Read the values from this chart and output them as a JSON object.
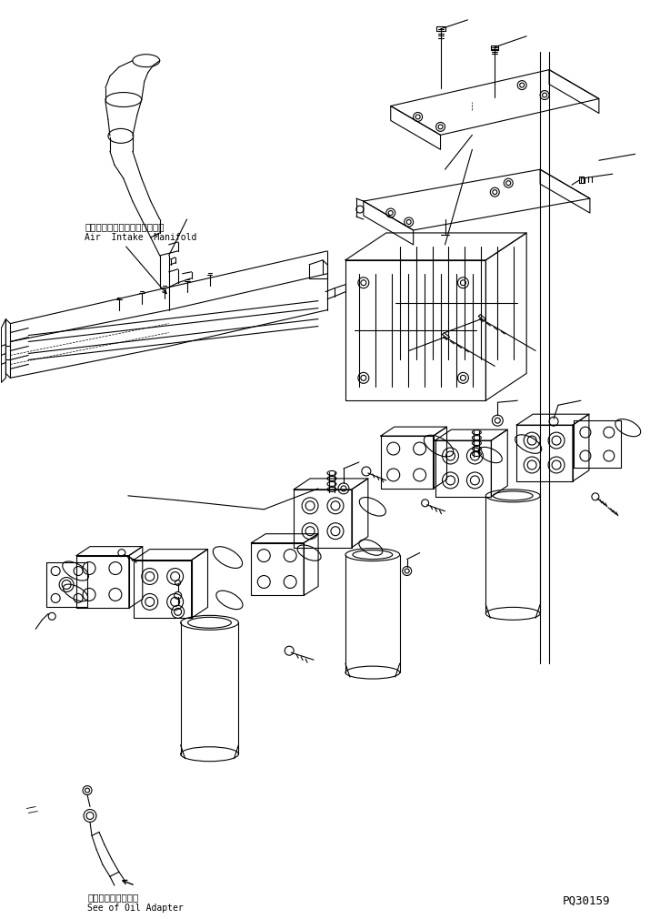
{
  "background_color": "#ffffff",
  "figure_width": 7.26,
  "figure_height": 10.1,
  "dpi": 100,
  "line_color": "#000000",
  "text_color": "#000000",
  "label_air_intake_jp": "エアーインテークマニホールド",
  "label_air_intake_en": "Air  Intake  Manifold",
  "label_oil_adapter_jp": "オイルアダプタ参照",
  "label_oil_adapter_en": "See of Oil Adapter",
  "label_part_no": "PQ30159"
}
